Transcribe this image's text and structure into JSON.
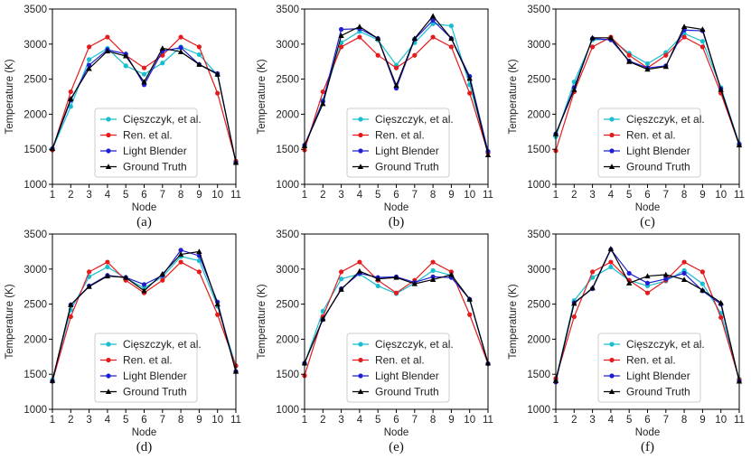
{
  "chart_data": [
    {
      "type": "line",
      "caption": "(a)",
      "xlabel": "Node",
      "ylabel": "Temperature (K)",
      "x": [
        1,
        2,
        3,
        4,
        5,
        6,
        7,
        8,
        9,
        10,
        11
      ],
      "xticks": [
        "1",
        "2",
        "3",
        "4",
        "5",
        "6",
        "7",
        "8",
        "9",
        "10",
        "11"
      ],
      "yticks": [
        "1000",
        "1500",
        "2000",
        "2500",
        "3000",
        "3500"
      ],
      "ylim": [
        1000,
        3500
      ],
      "legend": "lower-center",
      "series": [
        {
          "name": "Cięszczyk, et al.",
          "color": "#17becf",
          "marker": "circle",
          "values": [
            1500,
            2110,
            2780,
            2940,
            2690,
            2570,
            2730,
            2960,
            2850,
            2560,
            1320
          ]
        },
        {
          "name": "Ren. et al.",
          "color": "#e41a1c",
          "marker": "circle",
          "values": [
            1490,
            2320,
            2960,
            3100,
            2840,
            2660,
            2840,
            3100,
            2960,
            2300,
            1330
          ]
        },
        {
          "name": "Light Blender",
          "color": "#1f1fd1",
          "marker": "circle",
          "values": [
            1510,
            2200,
            2700,
            2920,
            2860,
            2420,
            2900,
            2950,
            2710,
            2580,
            1310
          ]
        },
        {
          "name": "Ground Truth",
          "color": "#000000",
          "marker": "triangle",
          "values": [
            1510,
            2220,
            2650,
            2900,
            2830,
            2460,
            2940,
            2890,
            2710,
            2570,
            1310
          ]
        }
      ]
    },
    {
      "type": "line",
      "caption": "(b)",
      "xlabel": "Node",
      "ylabel": "Temperature (K)",
      "x": [
        1,
        2,
        3,
        4,
        5,
        6,
        7,
        8,
        9,
        10,
        11
      ],
      "xticks": [
        "1",
        "2",
        "3",
        "4",
        "5",
        "6",
        "7",
        "8",
        "9",
        "10",
        "11"
      ],
      "yticks": [
        "1000",
        "1500",
        "2000",
        "2500",
        "3000",
        "3500"
      ],
      "ylim": [
        1000,
        3500
      ],
      "legend": "lower-center",
      "series": [
        {
          "name": "Cięszczyk, et al.",
          "color": "#17becf",
          "marker": "circle",
          "values": [
            1540,
            2200,
            3020,
            3180,
            3060,
            2700,
            3020,
            3290,
            3260,
            2420,
            1460
          ]
        },
        {
          "name": "Ren. et al.",
          "color": "#e41a1c",
          "marker": "circle",
          "values": [
            1490,
            2320,
            2960,
            3100,
            2840,
            2660,
            2840,
            3100,
            2960,
            2300,
            1450
          ]
        },
        {
          "name": "Light Blender",
          "color": "#1f1fd1",
          "marker": "circle",
          "values": [
            1560,
            2180,
            3210,
            3220,
            3080,
            2370,
            3070,
            3340,
            3080,
            2540,
            1470
          ]
        },
        {
          "name": "Ground Truth",
          "color": "#000000",
          "marker": "triangle",
          "values": [
            1550,
            2150,
            3120,
            3250,
            3080,
            2410,
            3080,
            3400,
            3080,
            2510,
            1420
          ]
        }
      ]
    },
    {
      "type": "line",
      "caption": "(c)",
      "xlabel": "Node",
      "ylabel": "Temperature (K)",
      "x": [
        1,
        2,
        3,
        4,
        5,
        6,
        7,
        8,
        9,
        10,
        11
      ],
      "xticks": [
        "1",
        "2",
        "3",
        "4",
        "5",
        "6",
        "7",
        "8",
        "9",
        "10",
        "11"
      ],
      "yticks": [
        "1000",
        "1500",
        "2000",
        "2500",
        "3000",
        "3500"
      ],
      "ylim": [
        1000,
        3500
      ],
      "legend": "lower-center",
      "series": [
        {
          "name": "Cięszczyk, et al.",
          "color": "#17becf",
          "marker": "circle",
          "values": [
            1680,
            2460,
            3060,
            3070,
            2870,
            2720,
            2880,
            3150,
            3040,
            2380,
            1580
          ]
        },
        {
          "name": "Ren. et al.",
          "color": "#e41a1c",
          "marker": "circle",
          "values": [
            1480,
            2320,
            2960,
            3100,
            2840,
            2660,
            2840,
            3100,
            2960,
            2300,
            1560
          ]
        },
        {
          "name": "Light Blender",
          "color": "#1f1fd1",
          "marker": "circle",
          "values": [
            1720,
            2380,
            3080,
            3060,
            2760,
            2660,
            2690,
            3200,
            3190,
            2360,
            1570
          ]
        },
        {
          "name": "Ground Truth",
          "color": "#000000",
          "marker": "triangle",
          "values": [
            1720,
            2350,
            3090,
            3090,
            2750,
            2640,
            2680,
            3250,
            3210,
            2350,
            1560
          ]
        }
      ]
    },
    {
      "type": "line",
      "caption": "(d)",
      "xlabel": "Node",
      "ylabel": "Temperature (K)",
      "x": [
        1,
        2,
        3,
        4,
        5,
        6,
        7,
        8,
        9,
        10,
        11
      ],
      "xticks": [
        "1",
        "2",
        "3",
        "4",
        "5",
        "6",
        "7",
        "8",
        "9",
        "10",
        "11"
      ],
      "yticks": [
        "1000",
        "1500",
        "2000",
        "2500",
        "3000",
        "3500"
      ],
      "ylim": [
        1000,
        3500
      ],
      "legend": "lower-center",
      "series": [
        {
          "name": "Cięszczyk, et al.",
          "color": "#17becf",
          "marker": "circle",
          "values": [
            1420,
            2420,
            2890,
            3030,
            2870,
            2730,
            2890,
            3180,
            3120,
            2470,
            1620
          ]
        },
        {
          "name": "Ren. et al.",
          "color": "#e41a1c",
          "marker": "circle",
          "values": [
            1400,
            2320,
            2960,
            3100,
            2840,
            2660,
            2840,
            3100,
            2960,
            2350,
            1620
          ]
        },
        {
          "name": "Light Blender",
          "color": "#1f1fd1",
          "marker": "circle",
          "values": [
            1400,
            2490,
            2760,
            2910,
            2880,
            2780,
            2910,
            3270,
            3190,
            2530,
            1540
          ]
        },
        {
          "name": "Ground Truth",
          "color": "#000000",
          "marker": "triangle",
          "values": [
            1410,
            2490,
            2750,
            2900,
            2880,
            2690,
            2930,
            3210,
            3250,
            2500,
            1540
          ]
        }
      ]
    },
    {
      "type": "line",
      "caption": "(e)",
      "xlabel": "Node",
      "ylabel": "Temperature (K)",
      "x": [
        1,
        2,
        3,
        4,
        5,
        6,
        7,
        8,
        9,
        10,
        11
      ],
      "xticks": [
        "1",
        "2",
        "3",
        "4",
        "5",
        "6",
        "7",
        "8",
        "9",
        "10",
        "11"
      ],
      "yticks": [
        "1000",
        "1500",
        "2000",
        "2500",
        "3000",
        "3500"
      ],
      "ylim": [
        1000,
        3500
      ],
      "legend": "lower-center",
      "series": [
        {
          "name": "Cięszczyk, et al.",
          "color": "#17becf",
          "marker": "circle",
          "values": [
            1650,
            2400,
            2860,
            2930,
            2760,
            2650,
            2800,
            2980,
            2910,
            2560,
            1650
          ]
        },
        {
          "name": "Ren. et al.",
          "color": "#e41a1c",
          "marker": "circle",
          "values": [
            1480,
            2320,
            2960,
            3100,
            2840,
            2660,
            2840,
            3100,
            2960,
            2350,
            1650
          ]
        },
        {
          "name": "Light Blender",
          "color": "#1f1fd1",
          "marker": "circle",
          "values": [
            1660,
            2280,
            2720,
            2940,
            2880,
            2890,
            2810,
            2890,
            2880,
            2570,
            1650
          ]
        },
        {
          "name": "Ground Truth",
          "color": "#000000",
          "marker": "triangle",
          "values": [
            1660,
            2290,
            2710,
            2970,
            2860,
            2880,
            2790,
            2850,
            2920,
            2570,
            1660
          ]
        }
      ]
    },
    {
      "type": "line",
      "caption": "(f)",
      "xlabel": "Node",
      "ylabel": "Temperature (K)",
      "x": [
        1,
        2,
        3,
        4,
        5,
        6,
        7,
        8,
        9,
        10,
        11
      ],
      "xticks": [
        "1",
        "2",
        "3",
        "4",
        "5",
        "6",
        "7",
        "8",
        "9",
        "10",
        "11"
      ],
      "yticks": [
        "1000",
        "1500",
        "2000",
        "2500",
        "3000",
        "3500"
      ],
      "ylim": [
        1000,
        3500
      ],
      "legend": "lower-center",
      "series": [
        {
          "name": "Cięszczyk, et al.",
          "color": "#17becf",
          "marker": "circle",
          "values": [
            1420,
            2550,
            2880,
            3030,
            2840,
            2760,
            2830,
            2980,
            2790,
            2370,
            1430
          ]
        },
        {
          "name": "Ren. et al.",
          "color": "#e41a1c",
          "marker": "circle",
          "values": [
            1440,
            2320,
            2960,
            3100,
            2840,
            2660,
            2840,
            3100,
            2960,
            2310,
            1420
          ]
        },
        {
          "name": "Light Blender",
          "color": "#1f1fd1",
          "marker": "circle",
          "values": [
            1390,
            2520,
            2720,
            3280,
            2940,
            2800,
            2860,
            2940,
            2690,
            2500,
            1400
          ]
        },
        {
          "name": "Ground Truth",
          "color": "#000000",
          "marker": "triangle",
          "values": [
            1410,
            2510,
            2730,
            3290,
            2800,
            2900,
            2920,
            2850,
            2700,
            2520,
            1400
          ]
        }
      ]
    }
  ]
}
